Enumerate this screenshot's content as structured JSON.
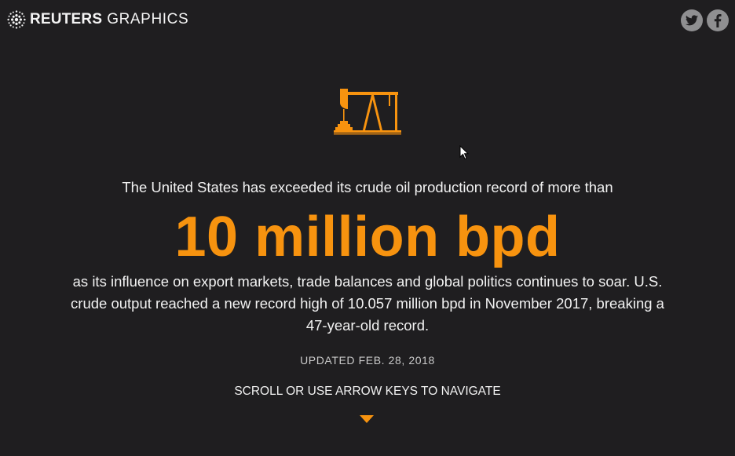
{
  "header": {
    "brand_bold": "REUTERS",
    "brand_light": "GRAPHICS",
    "logo_icon": "reuters-dot-logo-icon",
    "social": {
      "twitter_icon": "twitter-icon",
      "facebook_icon": "facebook-icon"
    }
  },
  "hero": {
    "icon": "oil-pumpjack-icon",
    "intro": "The United States has exceeded its crude oil production record of more than",
    "headline": "10 million bpd",
    "body": "as its influence on export markets, trade balances and global politics continues to soar. U.S. crude output reached a new record high of 10.057 million bpd in November 2017, breaking a 47-year-old record.",
    "updated": "UPDATED FEB. 28, 2018",
    "nav_hint": "SCROLL OR USE ARROW KEYS TO NAVIGATE",
    "nav_arrow_icon": "chevron-down-icon"
  },
  "colors": {
    "background": "#1f1e20",
    "accent": "#f7930f",
    "text": "#f2f2f2",
    "muted": "#c9c9c9",
    "social_button": "#8f8f91"
  }
}
